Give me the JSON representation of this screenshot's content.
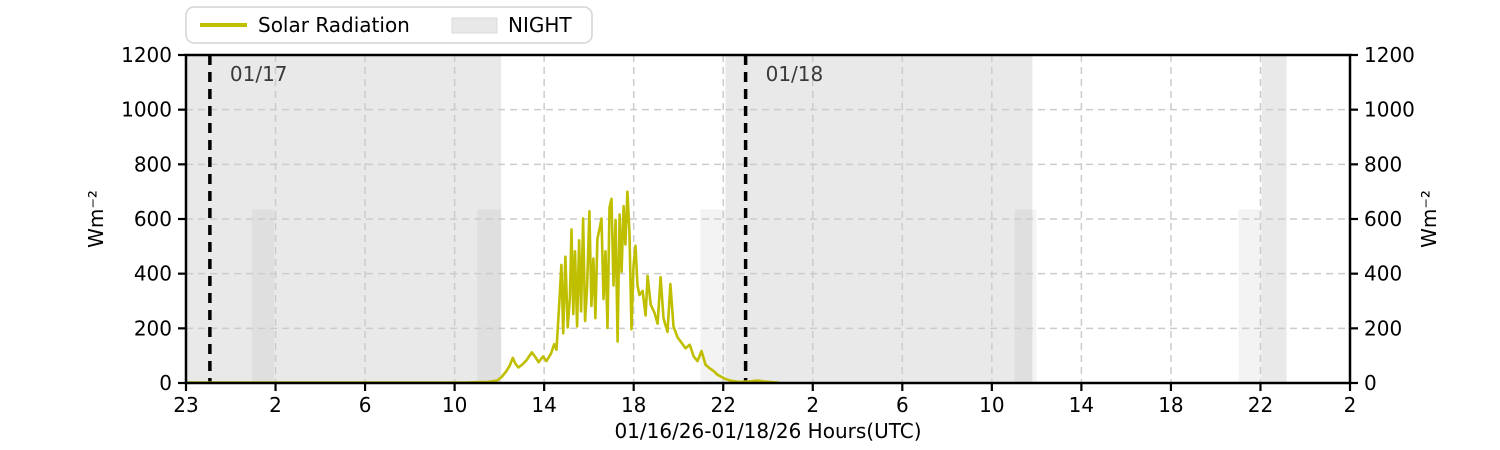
{
  "figure": {
    "background": "#ffffff",
    "plot_background": "#ffffff"
  },
  "colors": {
    "solar_line": "#bfbf00",
    "night_band": "#e9e9e9",
    "twilight_band_alpha": "rgba(120,120,120,0.09)",
    "grid": "#cccccc",
    "spine": "#000000",
    "day_marker_line": "#000000",
    "day_marker_text": "#3a3a3a",
    "tick_text": "#000000",
    "legend_border": "#d4d4d4",
    "legend_bg": "#ffffff",
    "night_swatch": "#e8e8e8",
    "night_swatch_border": "#dadada"
  },
  "legend": {
    "items": [
      {
        "label": "Solar Radiation",
        "type": "line",
        "color": "#bfbf00"
      },
      {
        "label": "NIGHT",
        "type": "patch",
        "color": "#e8e8e8"
      }
    ]
  },
  "chart_data": {
    "type": "line",
    "title": "",
    "xlabel": "01/16/26-01/18/26  Hours(UTC)",
    "ylabel_left": "Wm⁻²",
    "ylabel_right": "Wm⁻²",
    "ylim": [
      0,
      1200
    ],
    "yticks": [
      0,
      200,
      400,
      600,
      800,
      1000,
      1200
    ],
    "grid": "dashed, both axes",
    "legend_position": "top-left, outside axes",
    "x_axis_note": "hours UTC since 01/16 23:00; ticks rendered evenly spaced as in source image",
    "xticks": [
      {
        "hour": 0,
        "label": "23"
      },
      {
        "hour": 3,
        "label": "2"
      },
      {
        "hour": 7,
        "label": "6"
      },
      {
        "hour": 11,
        "label": "10"
      },
      {
        "hour": 15,
        "label": "14"
      },
      {
        "hour": 19,
        "label": "18"
      },
      {
        "hour": 23,
        "label": "22"
      },
      {
        "hour": 27,
        "label": "2"
      },
      {
        "hour": 31,
        "label": "6"
      },
      {
        "hour": 35,
        "label": "10"
      },
      {
        "hour": 39,
        "label": "14"
      },
      {
        "hour": 43,
        "label": "18"
      },
      {
        "hour": 47,
        "label": "22"
      },
      {
        "hour": 51,
        "label": "2"
      }
    ],
    "day_markers": [
      {
        "hour": 0.8,
        "label": "01/17"
      },
      {
        "hour": 24.0,
        "label": "01/18"
      }
    ],
    "night_bands_full_height": [
      [
        0,
        13.08
      ],
      [
        23.1,
        36.81
      ],
      [
        47.05,
        48.17
      ]
    ],
    "twilight_bands": {
      "value_top": 635,
      "ranges": [
        [
          2.21,
          2.95
        ],
        [
          12.01,
          13.08
        ],
        [
          21.98,
          23.09
        ],
        [
          36.01,
          36.99
        ],
        [
          46.02,
          47.05
        ]
      ]
    },
    "series": [
      {
        "name": "Solar Radiation",
        "color": "#bfbf00",
        "units": "Wm⁻²",
        "points": [
          [
            0,
            2
          ],
          [
            0.5,
            2
          ],
          [
            1,
            2
          ],
          [
            1.5,
            2
          ],
          [
            2,
            2
          ],
          [
            2.5,
            2
          ],
          [
            3,
            2
          ],
          [
            3.5,
            2
          ],
          [
            4,
            2
          ],
          [
            4.5,
            2
          ],
          [
            5,
            2
          ],
          [
            5.5,
            2
          ],
          [
            6,
            2
          ],
          [
            6.5,
            2
          ],
          [
            7,
            2
          ],
          [
            7.5,
            2
          ],
          [
            8,
            2
          ],
          [
            8.5,
            2
          ],
          [
            9,
            2
          ],
          [
            9.5,
            2
          ],
          [
            10,
            2
          ],
          [
            10.5,
            2
          ],
          [
            11,
            2
          ],
          [
            11.5,
            2
          ],
          [
            12,
            3
          ],
          [
            12.5,
            4
          ],
          [
            12.9,
            9
          ],
          [
            13.1,
            22
          ],
          [
            13.3,
            42
          ],
          [
            13.45,
            62
          ],
          [
            13.6,
            92
          ],
          [
            13.72,
            70
          ],
          [
            13.85,
            57
          ],
          [
            14.0,
            66
          ],
          [
            14.2,
            82
          ],
          [
            14.45,
            112
          ],
          [
            14.6,
            96
          ],
          [
            14.75,
            76
          ],
          [
            14.95,
            97
          ],
          [
            15.1,
            80
          ],
          [
            15.3,
            107
          ],
          [
            15.45,
            142
          ],
          [
            15.55,
            122
          ],
          [
            15.68,
            300
          ],
          [
            15.77,
            432
          ],
          [
            15.85,
            182
          ],
          [
            15.95,
            462
          ],
          [
            16.05,
            203
          ],
          [
            16.15,
            312
          ],
          [
            16.22,
            562
          ],
          [
            16.3,
            252
          ],
          [
            16.38,
            482
          ],
          [
            16.47,
            207
          ],
          [
            16.56,
            522
          ],
          [
            16.65,
            262
          ],
          [
            16.74,
            602
          ],
          [
            16.83,
            227
          ],
          [
            16.92,
            352
          ],
          [
            17.02,
            628
          ],
          [
            17.11,
            282
          ],
          [
            17.2,
            455
          ],
          [
            17.29,
            237
          ],
          [
            17.38,
            527
          ],
          [
            17.47,
            562
          ],
          [
            17.56,
            602
          ],
          [
            17.65,
            307
          ],
          [
            17.74,
            482
          ],
          [
            17.83,
            202
          ],
          [
            17.92,
            642
          ],
          [
            18.01,
            674
          ],
          [
            18.1,
            357
          ],
          [
            18.19,
            597
          ],
          [
            18.28,
            152
          ],
          [
            18.37,
            617
          ],
          [
            18.46,
            407
          ],
          [
            18.55,
            647
          ],
          [
            18.63,
            507
          ],
          [
            18.72,
            700
          ],
          [
            18.81,
            557
          ],
          [
            18.9,
            197
          ],
          [
            18.99,
            427
          ],
          [
            19.08,
            502
          ],
          [
            19.17,
            357
          ],
          [
            19.26,
            322
          ],
          [
            19.4,
            337
          ],
          [
            19.53,
            247
          ],
          [
            19.62,
            392
          ],
          [
            19.76,
            287
          ],
          [
            19.93,
            257
          ],
          [
            20.07,
            217
          ],
          [
            20.2,
            387
          ],
          [
            20.33,
            237
          ],
          [
            20.51,
            187
          ],
          [
            20.64,
            362
          ],
          [
            20.78,
            207
          ],
          [
            20.96,
            167
          ],
          [
            21.14,
            147
          ],
          [
            21.32,
            127
          ],
          [
            21.5,
            140
          ],
          [
            21.68,
            97
          ],
          [
            21.85,
            80
          ],
          [
            22.03,
            117
          ],
          [
            22.21,
            67
          ],
          [
            22.39,
            54
          ],
          [
            22.57,
            44
          ],
          [
            22.75,
            30
          ],
          [
            23.09,
            15
          ],
          [
            23.35,
            8
          ],
          [
            23.7,
            4
          ],
          [
            24.15,
            6
          ],
          [
            24.55,
            9
          ],
          [
            24.85,
            5
          ],
          [
            25.2,
            3
          ],
          [
            25.5,
            1
          ]
        ]
      }
    ]
  }
}
